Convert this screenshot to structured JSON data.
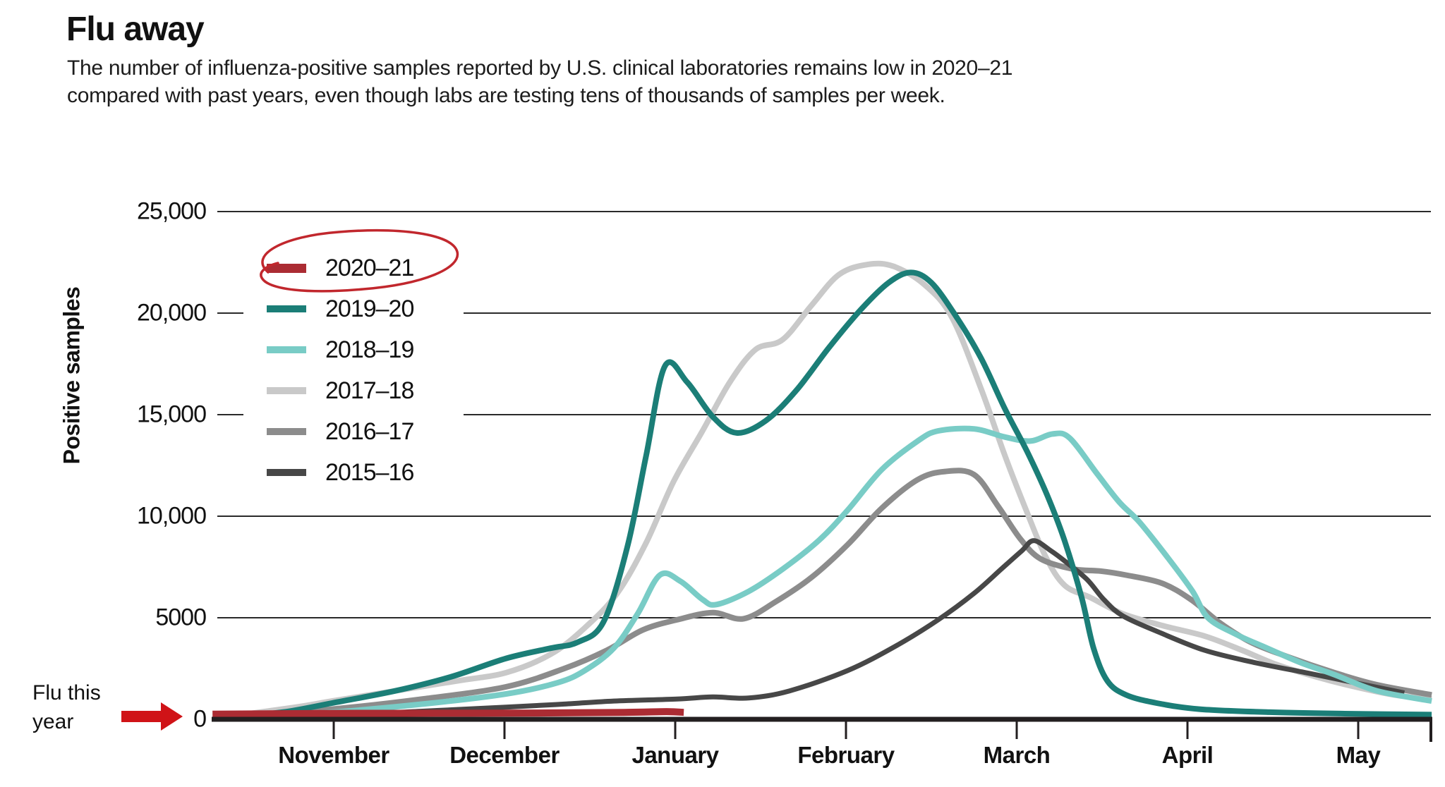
{
  "header": {
    "title": "Flu away",
    "subtitle_line1": "The number of influenza-positive samples reported by U.S. clinical laboratories remains low in 2020–21",
    "subtitle_line2": "compared with past years, even though labs are testing tens of thousands of samples per week."
  },
  "annotations": {
    "flu_note_line1": "Flu this",
    "flu_note_line2": "year",
    "circled_legend_entry": "2020–21"
  },
  "colors": {
    "text": "#111111",
    "axis": "#231f20",
    "grid": "#2a2a2a",
    "annotation_circle": "#c1272d",
    "annotation_arrow": "#d01317"
  },
  "chart_data": {
    "type": "line",
    "title": "Flu away",
    "xlabel": "",
    "ylabel": "Positive samples",
    "ylim": [
      0,
      25000
    ],
    "yticks": [
      0,
      5000,
      10000,
      15000,
      20000,
      25000
    ],
    "ytick_labels": [
      "0",
      "5000",
      "10,000",
      "15,000",
      "20,000",
      "25,000"
    ],
    "x_axis_months": [
      "November",
      "December",
      "January",
      "February",
      "March",
      "April",
      "May"
    ],
    "x_unit_note": "x = months after the November tick (0 = November, 6 = May)",
    "grid": "horizontal",
    "legend_position": "upper-left-inside",
    "series": [
      {
        "name": "2020–21",
        "color": "#ab2c33",
        "width": 10,
        "circled": true,
        "points": [
          [
            -0.71,
            250
          ],
          [
            0,
            290
          ],
          [
            0.6,
            300
          ],
          [
            1.2,
            310
          ],
          [
            1.7,
            340
          ],
          [
            1.95,
            380
          ],
          [
            2.05,
            340
          ]
        ]
      },
      {
        "name": "2019–20",
        "color": "#1b7e77",
        "width": 8,
        "circled": false,
        "points": [
          [
            -0.67,
            60
          ],
          [
            -0.3,
            350
          ],
          [
            -0.01,
            800
          ],
          [
            0.36,
            1400
          ],
          [
            0.69,
            2100
          ],
          [
            1.01,
            3000
          ],
          [
            1.27,
            3500
          ],
          [
            1.43,
            3800
          ],
          [
            1.58,
            4800
          ],
          [
            1.72,
            8500
          ],
          [
            1.83,
            13000
          ],
          [
            1.94,
            17400
          ],
          [
            2.07,
            16600
          ],
          [
            2.22,
            14900
          ],
          [
            2.36,
            14100
          ],
          [
            2.53,
            14700
          ],
          [
            2.71,
            16200
          ],
          [
            2.9,
            18300
          ],
          [
            3.09,
            20200
          ],
          [
            3.25,
            21500
          ],
          [
            3.38,
            22000
          ],
          [
            3.5,
            21500
          ],
          [
            3.64,
            19900
          ],
          [
            3.79,
            17800
          ],
          [
            3.93,
            15300
          ],
          [
            4.06,
            13200
          ],
          [
            4.18,
            11000
          ],
          [
            4.28,
            8800
          ],
          [
            4.38,
            6000
          ],
          [
            4.45,
            3500
          ],
          [
            4.53,
            1900
          ],
          [
            4.64,
            1200
          ],
          [
            4.82,
            800
          ],
          [
            5.07,
            500
          ],
          [
            5.48,
            350
          ],
          [
            5.9,
            280
          ],
          [
            6.43,
            230
          ]
        ]
      },
      {
        "name": "2018–19",
        "color": "#79ccc6",
        "width": 8,
        "circled": false,
        "points": [
          [
            -0.67,
            60
          ],
          [
            -0.01,
            350
          ],
          [
            0.52,
            750
          ],
          [
            1.01,
            1250
          ],
          [
            1.31,
            1800
          ],
          [
            1.47,
            2400
          ],
          [
            1.64,
            3500
          ],
          [
            1.78,
            5200
          ],
          [
            1.91,
            7100
          ],
          [
            2.03,
            6800
          ],
          [
            2.16,
            5900
          ],
          [
            2.24,
            5650
          ],
          [
            2.43,
            6300
          ],
          [
            2.63,
            7400
          ],
          [
            2.84,
            8800
          ],
          [
            3.01,
            10300
          ],
          [
            3.21,
            12300
          ],
          [
            3.42,
            13700
          ],
          [
            3.54,
            14200
          ],
          [
            3.75,
            14300
          ],
          [
            3.93,
            13900
          ],
          [
            4.08,
            13700
          ],
          [
            4.21,
            14050
          ],
          [
            4.31,
            13850
          ],
          [
            4.47,
            12100
          ],
          [
            4.6,
            10700
          ],
          [
            4.72,
            9700
          ],
          [
            4.89,
            7900
          ],
          [
            5.03,
            6300
          ],
          [
            5.12,
            5000
          ],
          [
            5.28,
            4200
          ],
          [
            5.44,
            3600
          ],
          [
            5.66,
            2800
          ],
          [
            5.86,
            2200
          ],
          [
            6.11,
            1400
          ],
          [
            6.43,
            900
          ]
        ]
      },
      {
        "name": "2017–18",
        "color": "#c9c9c9",
        "width": 8,
        "circled": false,
        "points": [
          [
            -0.67,
            80
          ],
          [
            -0.22,
            600
          ],
          [
            -0.01,
            900
          ],
          [
            0.36,
            1400
          ],
          [
            0.73,
            1900
          ],
          [
            1.01,
            2300
          ],
          [
            1.27,
            3200
          ],
          [
            1.47,
            4500
          ],
          [
            1.66,
            6200
          ],
          [
            1.83,
            8700
          ],
          [
            1.99,
            11700
          ],
          [
            2.16,
            14200
          ],
          [
            2.32,
            16600
          ],
          [
            2.47,
            18200
          ],
          [
            2.63,
            18700
          ],
          [
            2.8,
            20400
          ],
          [
            2.96,
            21900
          ],
          [
            3.13,
            22400
          ],
          [
            3.28,
            22300
          ],
          [
            3.46,
            21400
          ],
          [
            3.62,
            19800
          ],
          [
            3.79,
            16300
          ],
          [
            3.93,
            13000
          ],
          [
            4.06,
            10200
          ],
          [
            4.17,
            8000
          ],
          [
            4.28,
            6600
          ],
          [
            4.43,
            6000
          ],
          [
            4.62,
            5200
          ],
          [
            4.86,
            4600
          ],
          [
            5.1,
            4100
          ],
          [
            5.32,
            3400
          ],
          [
            5.52,
            2700
          ],
          [
            5.75,
            2100
          ],
          [
            5.98,
            1600
          ],
          [
            6.21,
            1200
          ],
          [
            6.43,
            1000
          ]
        ]
      },
      {
        "name": "2016–17",
        "color": "#8c8c8c",
        "width": 8,
        "circled": false,
        "points": [
          [
            -0.67,
            80
          ],
          [
            -0.01,
            500
          ],
          [
            0.52,
            1000
          ],
          [
            1.01,
            1600
          ],
          [
            1.35,
            2500
          ],
          [
            1.6,
            3400
          ],
          [
            1.81,
            4400
          ],
          [
            2.01,
            4900
          ],
          [
            2.22,
            5250
          ],
          [
            2.4,
            4950
          ],
          [
            2.59,
            5800
          ],
          [
            2.8,
            7000
          ],
          [
            3.01,
            8600
          ],
          [
            3.21,
            10400
          ],
          [
            3.42,
            11800
          ],
          [
            3.58,
            12200
          ],
          [
            3.75,
            12050
          ],
          [
            3.89,
            10500
          ],
          [
            4.02,
            8900
          ],
          [
            4.14,
            7900
          ],
          [
            4.33,
            7400
          ],
          [
            4.49,
            7300
          ],
          [
            4.64,
            7100
          ],
          [
            4.85,
            6700
          ],
          [
            5.02,
            5900
          ],
          [
            5.19,
            4750
          ],
          [
            5.37,
            3800
          ],
          [
            5.58,
            3100
          ],
          [
            5.86,
            2300
          ],
          [
            6.11,
            1700
          ],
          [
            6.43,
            1200
          ]
        ]
      },
      {
        "name": "2015–16",
        "color": "#474747",
        "width": 7,
        "circled": false,
        "points": [
          [
            -0.67,
            50
          ],
          [
            -0.01,
            200
          ],
          [
            0.52,
            400
          ],
          [
            1.01,
            600
          ],
          [
            1.35,
            750
          ],
          [
            1.64,
            900
          ],
          [
            2.01,
            1000
          ],
          [
            2.22,
            1100
          ],
          [
            2.43,
            1050
          ],
          [
            2.67,
            1400
          ],
          [
            3.01,
            2400
          ],
          [
            3.29,
            3600
          ],
          [
            3.54,
            4900
          ],
          [
            3.75,
            6200
          ],
          [
            3.91,
            7400
          ],
          [
            4.03,
            8300
          ],
          [
            4.1,
            8800
          ],
          [
            4.2,
            8300
          ],
          [
            4.28,
            7800
          ],
          [
            4.41,
            6900
          ],
          [
            4.51,
            5900
          ],
          [
            4.62,
            5100
          ],
          [
            4.83,
            4300
          ],
          [
            5.1,
            3400
          ],
          [
            5.39,
            2800
          ],
          [
            5.72,
            2250
          ],
          [
            5.98,
            1800
          ],
          [
            6.27,
            1300
          ]
        ]
      }
    ]
  }
}
